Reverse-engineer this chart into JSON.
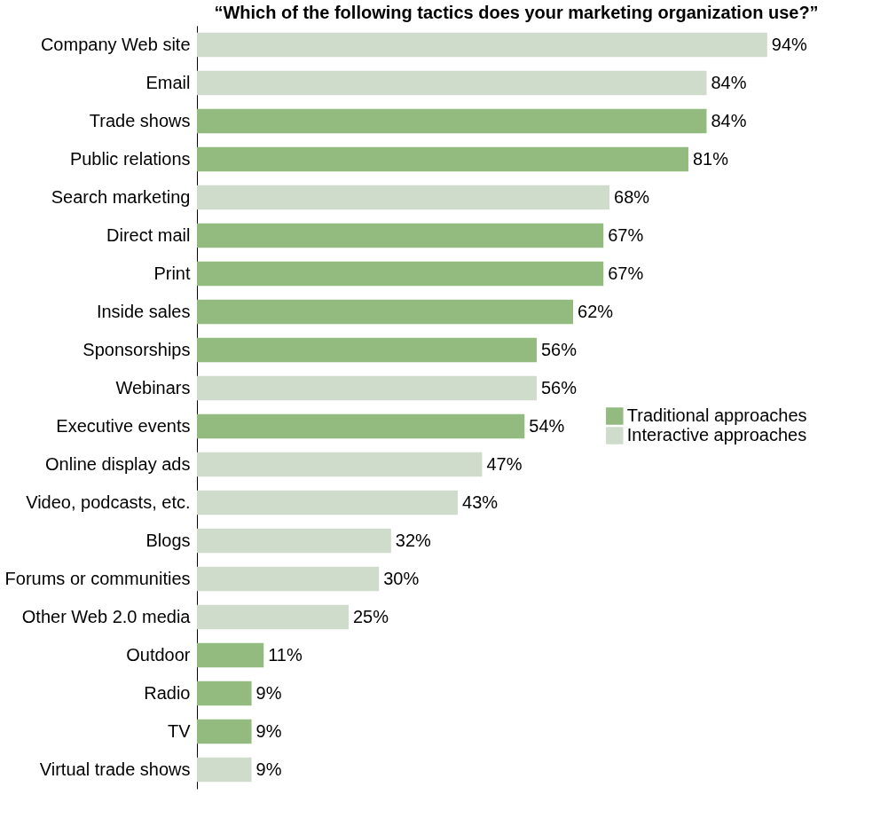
{
  "chart_data": {
    "type": "bar",
    "orientation": "horizontal",
    "title": "“Which of the following tactics does your marketing organization use?”",
    "categories": [
      "Company Web site",
      "Email",
      "Trade shows",
      "Public relations",
      "Search marketing",
      "Direct mail",
      "Print",
      "Inside sales",
      "Sponsorships",
      "Webinars",
      "Executive events",
      "Online display ads",
      "Video, podcasts, etc.",
      "Blogs",
      "Forums or communities",
      "Other Web 2.0 media",
      "Outdoor",
      "Radio",
      "TV",
      "Virtual trade shows"
    ],
    "series": [
      {
        "name": "Traditional approaches",
        "color": "#93bb7f",
        "values": [
          null,
          null,
          84,
          81,
          null,
          67,
          67,
          62,
          56,
          null,
          54,
          null,
          null,
          null,
          null,
          null,
          11,
          9,
          9,
          null
        ],
        "value_labels": [
          null,
          null,
          "84%",
          "81%",
          null,
          "67%",
          "67%",
          "62%",
          "56%",
          null,
          "54%",
          null,
          null,
          null,
          null,
          null,
          "11%",
          "9%",
          "9%",
          null
        ]
      },
      {
        "name": "Interactive approaches",
        "color": "#cfdccb",
        "values": [
          94,
          84,
          null,
          null,
          68,
          null,
          null,
          null,
          null,
          56,
          null,
          47,
          43,
          32,
          30,
          25,
          null,
          null,
          null,
          9
        ],
        "value_labels": [
          "94%",
          "84%",
          null,
          null,
          "68%",
          null,
          null,
          null,
          null,
          "56%",
          null,
          "47%",
          "43%",
          "32%",
          "30%",
          "25%",
          null,
          null,
          null,
          "9%"
        ]
      }
    ],
    "legend": "right"
  }
}
